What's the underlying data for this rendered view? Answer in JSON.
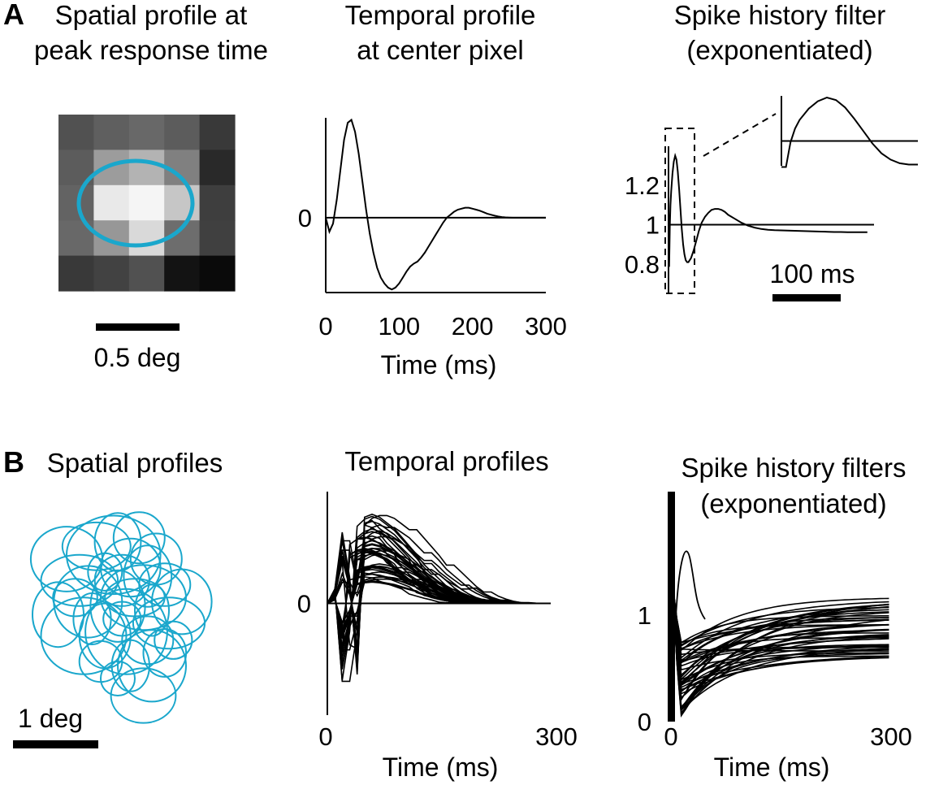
{
  "colors": {
    "ellipse": "#1aa7cc",
    "line": "#000000",
    "background": "#ffffff"
  },
  "panel_labels": {
    "a": "A",
    "b": "B"
  },
  "a_spatial": {
    "title1": "Spatial profile at",
    "title2": "peak response time",
    "scalebar_label": "0.5 deg"
  },
  "a_temporal": {
    "title1": "Temporal profile",
    "title2": "at center pixel",
    "xlabel": "Time (ms)"
  },
  "a_spike": {
    "title1": "Spike history filter",
    "title2": "(exponentiated)",
    "scalebar_label": "100 ms"
  },
  "b_spatial": {
    "title": "Spatial profiles",
    "scalebar_label": "1 deg"
  },
  "b_temporal": {
    "title": "Temporal profiles",
    "xlabel": "Time (ms)"
  },
  "b_spike": {
    "title1": "Spike history filters",
    "title2": "(exponentiated)",
    "xlabel": "Time (ms)"
  },
  "chart_data": [
    {
      "id": "A-spatial",
      "type": "heatmap",
      "title": "Spatial profile at peak response time",
      "grid_size": [
        5,
        5
      ],
      "values": [
        [
          0.3,
          0.36,
          0.4,
          0.35,
          0.2
        ],
        [
          0.35,
          0.62,
          0.72,
          0.5,
          0.13
        ],
        [
          0.38,
          0.95,
          1.0,
          0.8,
          0.22
        ],
        [
          0.4,
          0.6,
          0.88,
          0.42,
          0.23
        ],
        [
          0.2,
          0.24,
          0.3,
          0.04,
          0.0
        ]
      ],
      "overlay": "ellipse",
      "scalebar": "0.5 deg"
    },
    {
      "id": "A-temporal",
      "type": "line",
      "title": "Temporal profile at center pixel",
      "xlabel": "Time (ms)",
      "xlim": [
        0,
        300
      ],
      "ylim": [
        -0.75,
        1.0
      ],
      "xticks": [
        0,
        100,
        200,
        300
      ],
      "yticks": [
        {
          "value": 0,
          "label": "0"
        }
      ],
      "series": [
        {
          "x": [
            0,
            5,
            10,
            15,
            20,
            25,
            30,
            35,
            40,
            45,
            50,
            55,
            60,
            65,
            70,
            75,
            80,
            85,
            90,
            95,
            100,
            105,
            110,
            115,
            120,
            125,
            130,
            135,
            140,
            145,
            150,
            155,
            160,
            165,
            170,
            175,
            180,
            185,
            190,
            195,
            200,
            205,
            210,
            215,
            220,
            225,
            230,
            235,
            240,
            245,
            250,
            255,
            260,
            265,
            270,
            280,
            290,
            300
          ],
          "y": [
            0.0,
            -0.14,
            -0.06,
            0.18,
            0.48,
            0.78,
            0.95,
            0.98,
            0.86,
            0.64,
            0.36,
            0.08,
            -0.16,
            -0.35,
            -0.5,
            -0.6,
            -0.66,
            -0.7,
            -0.72,
            -0.7,
            -0.66,
            -0.6,
            -0.54,
            -0.49,
            -0.46,
            -0.44,
            -0.4,
            -0.35,
            -0.29,
            -0.23,
            -0.17,
            -0.11,
            -0.05,
            0.0,
            0.03,
            0.06,
            0.08,
            0.09,
            0.1,
            0.1,
            0.09,
            0.08,
            0.07,
            0.055,
            0.04,
            0.03,
            0.02,
            0.012,
            0.006,
            0.003,
            0.001,
            0.0,
            0.0,
            0.0,
            0.0,
            0.0,
            0.0,
            0.0
          ]
        }
      ],
      "reference_line": {
        "y": 0
      }
    },
    {
      "id": "A-spike",
      "type": "line",
      "title": "Spike history filter (exponentiated)",
      "ylim": [
        0.75,
        1.4
      ],
      "yticks": [
        {
          "value": 0.8,
          "label": "0.8"
        },
        {
          "value": 1.0,
          "label": "1"
        },
        {
          "value": 1.2,
          "label": "1.2"
        }
      ],
      "xlim": [
        0,
        310
      ],
      "scalebar": "100 ms",
      "series": [
        {
          "x": [
            0,
            1,
            2,
            3,
            4,
            6,
            8,
            10,
            12,
            14,
            16,
            18,
            20,
            22,
            24,
            26,
            28,
            30,
            34,
            38,
            42,
            46,
            50,
            55,
            60,
            65,
            70,
            75,
            80,
            85,
            90,
            100,
            110,
            120,
            130,
            140,
            150,
            160,
            170,
            180,
            190,
            200,
            210,
            220,
            230,
            240,
            250,
            260,
            270,
            280,
            290,
            300
          ],
          "y": [
            0.79,
            0.79,
            0.99,
            1.1,
            1.17,
            1.26,
            1.32,
            1.35,
            1.33,
            1.27,
            1.18,
            1.08,
            0.98,
            0.9,
            0.85,
            0.82,
            0.81,
            0.81,
            0.83,
            0.87,
            0.92,
            0.97,
            1.01,
            1.04,
            1.06,
            1.075,
            1.08,
            1.08,
            1.075,
            1.065,
            1.05,
            1.03,
            1.01,
            0.995,
            0.985,
            0.978,
            0.974,
            0.972,
            0.971,
            0.97,
            0.969,
            0.968,
            0.967,
            0.966,
            0.965,
            0.964,
            0.963,
            0.963,
            0.962,
            0.962,
            0.962,
            0.962
          ]
        }
      ],
      "reference_line": {
        "y": 1
      },
      "inset": {
        "zoom_of_x": [
          0,
          30
        ]
      }
    },
    {
      "id": "B-spatial",
      "type": "scatter",
      "title": "Spatial profiles",
      "mark": "ellipse",
      "ellipses": [
        {
          "cx": 0.4,
          "cy": 0.6,
          "rx": 0.42,
          "ry": 0.38
        },
        {
          "cx": 0.55,
          "cy": 0.85,
          "rx": 0.45,
          "ry": 0.3
        },
        {
          "cx": 0.95,
          "cy": 0.55,
          "rx": 0.55,
          "ry": 0.46
        },
        {
          "cx": 1.15,
          "cy": 0.7,
          "rx": 0.35,
          "ry": 0.34
        },
        {
          "cx": 0.75,
          "cy": 0.45,
          "rx": 0.4,
          "ry": 0.28
        },
        {
          "cx": 1.0,
          "cy": 0.4,
          "rx": 0.27,
          "ry": 0.34
        },
        {
          "cx": 0.65,
          "cy": 1.1,
          "rx": 0.4,
          "ry": 0.42
        },
        {
          "cx": 1.0,
          "cy": 1.15,
          "rx": 0.32,
          "ry": 0.42
        },
        {
          "cx": 1.3,
          "cy": 1.05,
          "rx": 0.5,
          "ry": 0.38
        },
        {
          "cx": 1.1,
          "cy": 1.45,
          "rx": 0.48,
          "ry": 0.5
        },
        {
          "cx": 1.35,
          "cy": 1.55,
          "rx": 0.3,
          "ry": 0.28
        },
        {
          "cx": 1.4,
          "cy": 1.85,
          "rx": 0.4,
          "ry": 0.42
        },
        {
          "cx": 1.15,
          "cy": 1.85,
          "rx": 0.22,
          "ry": 0.3
        },
        {
          "cx": 1.3,
          "cy": 2.2,
          "rx": 0.38,
          "ry": 0.32
        },
        {
          "cx": 0.85,
          "cy": 1.5,
          "rx": 0.3,
          "ry": 0.38
        },
        {
          "cx": 0.6,
          "cy": 1.5,
          "rx": 0.5,
          "ry": 0.45
        },
        {
          "cx": 0.3,
          "cy": 1.25,
          "rx": 0.3,
          "ry": 0.38
        },
        {
          "cx": 1.6,
          "cy": 1.35,
          "rx": 0.42,
          "ry": 0.3
        },
        {
          "cx": 1.75,
          "cy": 1.1,
          "rx": 0.35,
          "ry": 0.38
        },
        {
          "cx": 1.55,
          "cy": 0.9,
          "rx": 0.3,
          "ry": 0.25
        },
        {
          "cx": 1.4,
          "cy": 1.2,
          "rx": 0.2,
          "ry": 0.3
        },
        {
          "cx": 0.5,
          "cy": 1.05,
          "rx": 0.26,
          "ry": 0.22
        },
        {
          "cx": 1.25,
          "cy": 0.35,
          "rx": 0.3,
          "ry": 0.3
        },
        {
          "cx": 1.05,
          "cy": 0.85,
          "rx": 0.32,
          "ry": 0.3
        },
        {
          "cx": 1.45,
          "cy": 0.6,
          "rx": 0.3,
          "ry": 0.3
        },
        {
          "cx": 0.8,
          "cy": 1.8,
          "rx": 0.25,
          "ry": 0.24
        },
        {
          "cx": 1.05,
          "cy": 1.3,
          "rx": 0.22,
          "ry": 0.2
        },
        {
          "cx": 1.55,
          "cy": 1.7,
          "rx": 0.25,
          "ry": 0.28
        },
        {
          "cx": 0.85,
          "cy": 0.75,
          "rx": 0.2,
          "ry": 0.22
        },
        {
          "cx": 1.2,
          "cy": 1.05,
          "rx": 0.35,
          "ry": 0.22
        },
        {
          "cx": 1.65,
          "cy": 1.55,
          "rx": 0.22,
          "ry": 0.22
        },
        {
          "cx": 1.0,
          "cy": 2.0,
          "rx": 0.2,
          "ry": 0.2
        },
        {
          "cx": 1.35,
          "cy": 0.8,
          "rx": 0.28,
          "ry": 0.36
        },
        {
          "cx": 0.7,
          "cy": 1.3,
          "rx": 0.22,
          "ry": 0.3
        }
      ],
      "scalebar": "1 deg"
    },
    {
      "id": "B-temporal",
      "type": "line",
      "title": "Temporal profiles",
      "xlabel": "Time (ms)",
      "xlim": [
        0,
        300
      ],
      "ylim": [
        -1.0,
        1.0
      ],
      "xticks": [
        0,
        300
      ],
      "yticks": [
        {
          "value": 0,
          "label": "0"
        }
      ],
      "series_count": 44,
      "reference_line": {
        "y": 0
      },
      "series_generator": {
        "x": [
          0,
          10,
          20,
          30,
          40,
          50,
          60,
          70,
          80,
          90,
          100,
          110,
          120,
          130,
          140,
          150,
          160,
          170,
          180,
          190,
          200,
          210,
          220,
          230,
          240,
          250,
          260,
          270,
          280,
          290,
          300
        ],
        "base": [
          0.0,
          0.1,
          -0.55,
          -0.2,
          0.55,
          0.6,
          0.62,
          0.6,
          0.56,
          0.52,
          0.46,
          0.4,
          0.34,
          0.27,
          0.22,
          0.17,
          0.12,
          0.08,
          0.05,
          0.03,
          0.015,
          0.006,
          0.002,
          0.0,
          0.0,
          0.0,
          0.0,
          0.0,
          0.0,
          0.0,
          0.0
        ],
        "scale_range": [
          0.3,
          1.3
        ]
      }
    },
    {
      "id": "B-spike",
      "type": "line",
      "title": "Spike history filters (exponentiated)",
      "xlabel": "Time (ms)",
      "xlim": [
        0,
        300
      ],
      "ylim": [
        0.0,
        1.8
      ],
      "xticks": [
        0,
        300
      ],
      "yticks": [
        {
          "value": 0,
          "label": "0"
        },
        {
          "value": 1,
          "label": "1"
        }
      ],
      "series_count": 44,
      "series_generator": {
        "min_range": [
          0.05,
          0.75
        ],
        "final_range": [
          0.6,
          1.2
        ]
      }
    }
  ]
}
